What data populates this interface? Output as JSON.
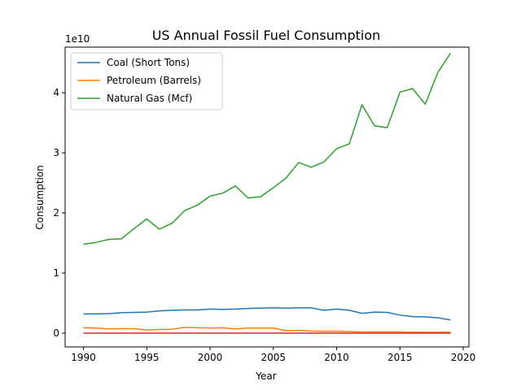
{
  "chart_data": {
    "type": "line",
    "title": "US Annual Fossil Fuel Consumption",
    "xlabel": "Year",
    "ylabel": "Consumption",
    "y_offset_label": "1e10",
    "xlim": [
      1988.55,
      2020.45
    ],
    "ylim": [
      -0.23,
      4.76
    ],
    "y_scale_note": "values in units of 1e10",
    "x_ticks": [
      1990,
      1995,
      2000,
      2005,
      2010,
      2015,
      2020
    ],
    "y_ticks": [
      0,
      1,
      2,
      3,
      4
    ],
    "grid": false,
    "legend_position": "upper-left",
    "x": [
      1990,
      1991,
      1992,
      1993,
      1994,
      1995,
      1996,
      1997,
      1998,
      1999,
      2000,
      2001,
      2002,
      2003,
      2004,
      2005,
      2006,
      2007,
      2008,
      2009,
      2010,
      2011,
      2012,
      2013,
      2014,
      2015,
      2016,
      2017,
      2018,
      2019
    ],
    "series": [
      {
        "name": "Coal (Short Tons)",
        "color": "#1f77b4",
        "in_legend": true,
        "values": [
          0.32,
          0.32,
          0.325,
          0.34,
          0.345,
          0.35,
          0.37,
          0.38,
          0.385,
          0.385,
          0.4,
          0.395,
          0.4,
          0.41,
          0.415,
          0.42,
          0.415,
          0.42,
          0.42,
          0.38,
          0.4,
          0.38,
          0.33,
          0.35,
          0.345,
          0.3,
          0.275,
          0.27,
          0.255,
          0.22
        ]
      },
      {
        "name": "Petroleum (Barrels)",
        "color": "#ff7f0e",
        "in_legend": true,
        "values": [
          0.09,
          0.085,
          0.07,
          0.075,
          0.075,
          0.05,
          0.06,
          0.065,
          0.095,
          0.09,
          0.085,
          0.09,
          0.07,
          0.085,
          0.085,
          0.085,
          0.04,
          0.045,
          0.035,
          0.03,
          0.03,
          0.025,
          0.02,
          0.02,
          0.02,
          0.02,
          0.015,
          0.015,
          0.015,
          0.015
        ]
      },
      {
        "name": "Natural Gas (Mcf)",
        "color": "#2ca02c",
        "in_legend": true,
        "values": [
          1.48,
          1.51,
          1.56,
          1.57,
          1.74,
          1.9,
          1.73,
          1.83,
          2.04,
          2.13,
          2.28,
          2.33,
          2.45,
          2.25,
          2.27,
          2.42,
          2.58,
          2.84,
          2.76,
          2.85,
          3.07,
          3.15,
          3.8,
          3.45,
          3.42,
          4.01,
          4.07,
          3.81,
          4.34,
          4.66
        ]
      },
      {
        "color": "#d62728",
        "in_legend": false,
        "values": [
          0,
          0,
          0,
          0,
          0,
          0,
          0,
          0,
          0,
          0,
          0,
          0,
          0,
          0,
          0,
          0,
          0,
          0,
          0,
          0,
          0,
          0,
          0,
          0,
          0,
          0,
          0,
          0,
          0,
          0
        ]
      }
    ]
  }
}
